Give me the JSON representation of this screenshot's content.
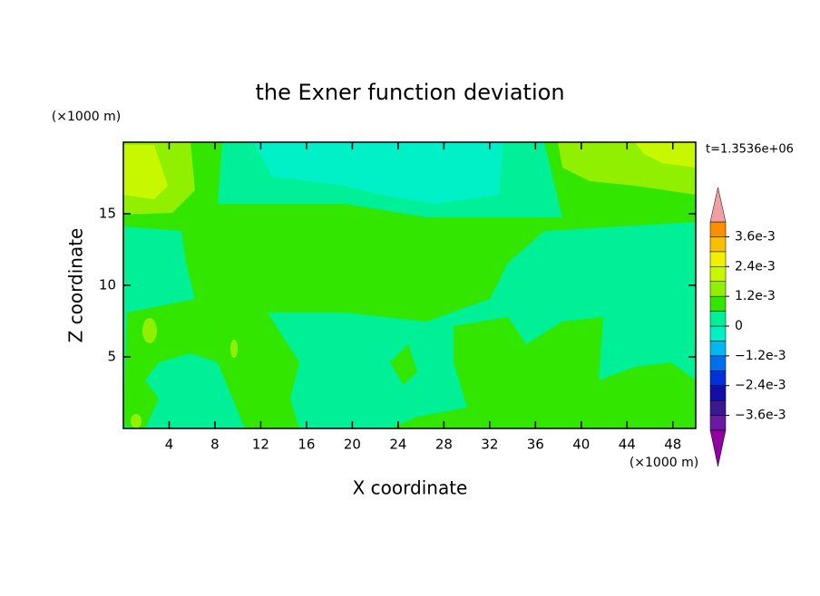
{
  "chart_data": {
    "type": "contour",
    "title": "the Exner function deviation",
    "xlabel": "X coordinate",
    "ylabel": "Z coordinate",
    "x_unit": "(×1000 m)",
    "y_unit": "(×1000 m)",
    "annotation": "t=1.3536e+06",
    "xlim": [
      0,
      50
    ],
    "ylim": [
      0,
      20
    ],
    "xticks": [
      4,
      8,
      12,
      16,
      20,
      24,
      28,
      32,
      36,
      40,
      44,
      48
    ],
    "yticks": [
      5,
      10,
      15
    ],
    "colorbar": {
      "clim": [
        -0.0042,
        0.0042
      ],
      "colors": [
        "#6a1aa0",
        "#3a1890",
        "#1010a8",
        "#0030d8",
        "#0070f0",
        "#00b8f0",
        "#00f0c8",
        "#00f098",
        "#33e600",
        "#90f000",
        "#c8f800",
        "#f0f000",
        "#f8c000",
        "#f89000"
      ],
      "over_color": "#f0a0a0",
      "under_color": "#9000a0",
      "ticks": [
        {
          "value": 0.0036,
          "label": "3.6e-3"
        },
        {
          "value": 0.0024,
          "label": "2.4e-3"
        },
        {
          "value": 0.0012,
          "label": "1.2e-3"
        },
        0,
        {
          "value": -0.0012,
          "label": "−1.2e-3"
        },
        {
          "value": -0.0024,
          "label": "−2.4e-3"
        },
        {
          "value": -0.0036,
          "label": "−3.6e-3"
        }
      ]
    }
  }
}
